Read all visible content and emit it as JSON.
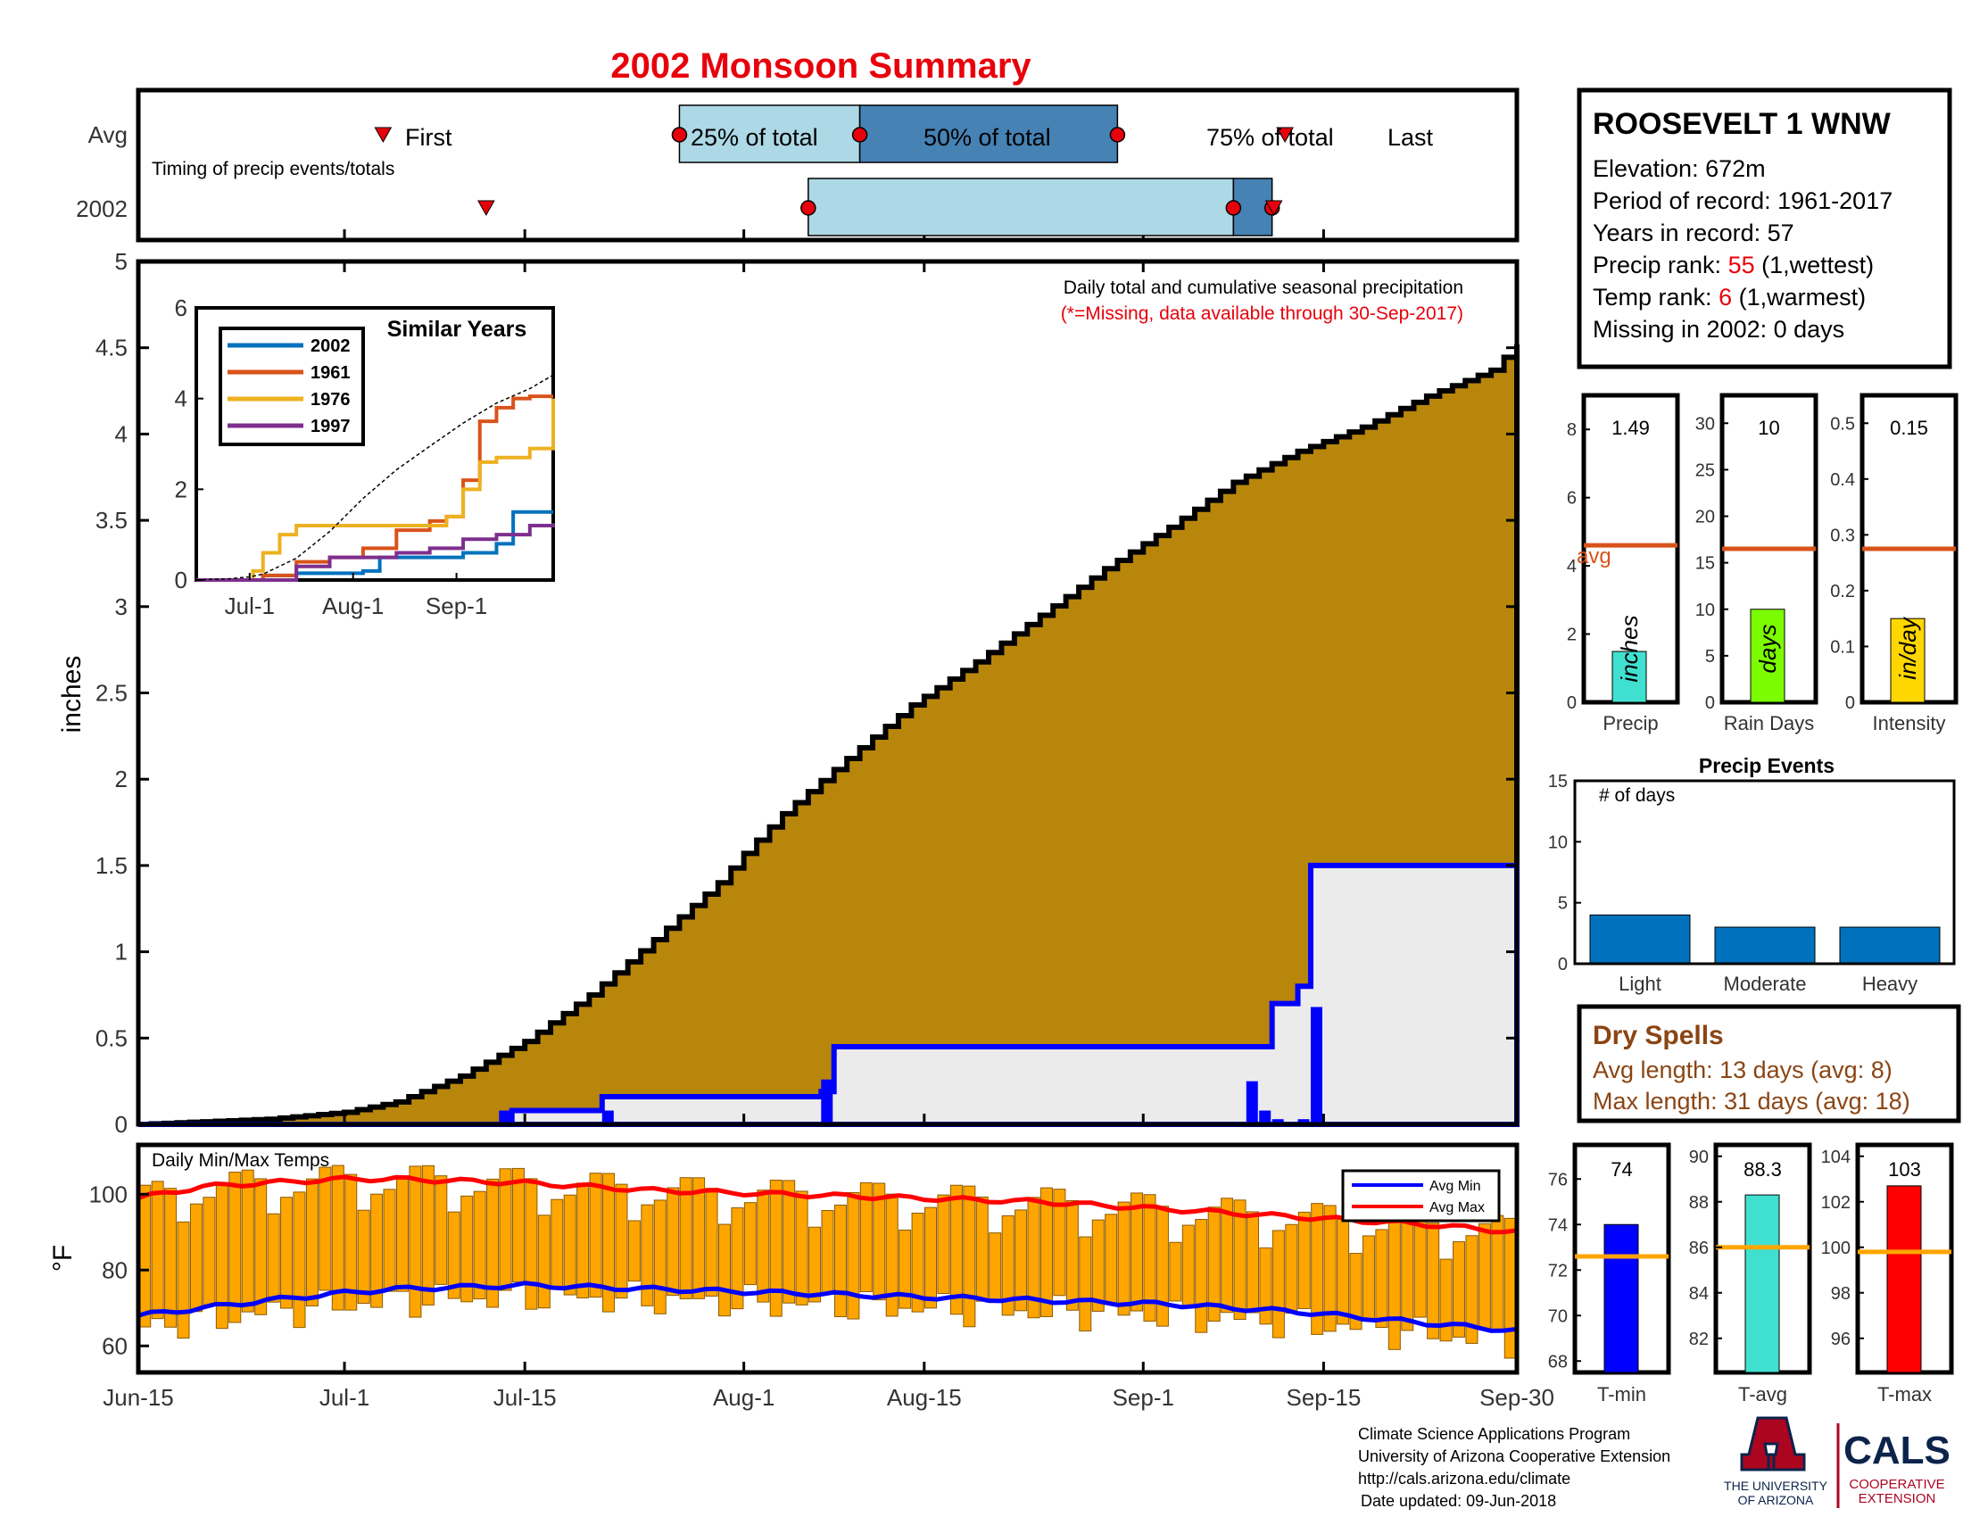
{
  "title": "2002 Monsoon Summary",
  "timing": {
    "avg_label": "Avg",
    "year_label": "2002",
    "subtitle": "Timing of precip events/totals",
    "first_label": "First",
    "p25_label": "25% of total",
    "p50_label": "50% of total",
    "p75_label": "75% of total",
    "last_label": "Last",
    "avg_marks": {
      "first": 19,
      "p25": 42,
      "p50": 56,
      "p75": 76,
      "last": 89
    },
    "year_marks": {
      "first": 27,
      "p25": 52,
      "p50": 85,
      "p75": 85,
      "last": 88
    }
  },
  "station": {
    "name": "ROOSEVELT 1 WNW",
    "elevation_label": "Elevation: 672m",
    "period_label": "Period of record: 1961-2017",
    "years_label": "Years in record: 57",
    "precip_rank_prefix": "Precip rank: ",
    "precip_rank": "55",
    "precip_rank_suffix": " (1,wettest)",
    "temp_rank_prefix": "Temp rank: ",
    "temp_rank": "6",
    "temp_rank_suffix": " (1,warmest)",
    "missing_label": "Missing in 2002: 0 days"
  },
  "main": {
    "note": "Daily total and cumulative seasonal precipitation",
    "missing_note": "(*=Missing, data available through 30-Sep-2017)",
    "ylabel": "inches",
    "temp_title": "Daily Min/Max Temps",
    "temp_ylabel": "°F",
    "legend_min": "Avg Min",
    "legend_max": "Avg Max",
    "yticks": [
      "0",
      "0.5",
      "1",
      "1.5",
      "2",
      "2.5",
      "3",
      "3.5",
      "4",
      "4.5",
      "5"
    ],
    "temp_yticks": [
      "60",
      "80",
      "100"
    ],
    "xticks": [
      {
        "day": 0,
        "label": "Jun-15"
      },
      {
        "day": 16,
        "label": "Jul-1"
      },
      {
        "day": 30,
        "label": "Jul-15"
      },
      {
        "day": 47,
        "label": "Aug-1"
      },
      {
        "day": 61,
        "label": "Aug-15"
      },
      {
        "day": 78,
        "label": "Sep-1"
      },
      {
        "day": 92,
        "label": "Sep-15"
      },
      {
        "day": 107,
        "label": "Sep-30"
      }
    ]
  },
  "similar": {
    "title": "Similar Years",
    "yticks": [
      "0",
      "2",
      "4",
      "6"
    ],
    "xticks": [
      "Jul-1",
      "Aug-1",
      "Sep-1"
    ],
    "legend": [
      {
        "label": "2002",
        "color": "#0072BD"
      },
      {
        "label": "1961",
        "color": "#D95319"
      },
      {
        "label": "1976",
        "color": "#EDB120"
      },
      {
        "label": "1997",
        "color": "#7E2F8E"
      }
    ]
  },
  "summary_bars": [
    {
      "label": "Precip",
      "value": 1.49,
      "value_label": "1.49",
      "avg": 4.6,
      "avg_label": "avg",
      "unit": "inches",
      "color": "#40E0D0",
      "ymax": 9,
      "yticks": [
        "0",
        "2",
        "4",
        "6",
        "8"
      ]
    },
    {
      "label": "Rain Days",
      "value": 10,
      "value_label": "10",
      "avg": 16.5,
      "unit": "days",
      "color": "#7CFC00",
      "ymax": 33,
      "yticks": [
        "0",
        "5",
        "10",
        "15",
        "20",
        "25",
        "30"
      ]
    },
    {
      "label": "Intensity",
      "value": 0.15,
      "value_label": "0.15",
      "avg": 0.275,
      "unit": "in/day",
      "color": "#FFD700",
      "ymax": 0.55,
      "yticks": [
        "0",
        "0.1",
        "0.2",
        "0.3",
        "0.4",
        "0.5"
      ]
    }
  ],
  "events": {
    "title": "Precip Events",
    "ylabel": "# of days",
    "yticks": [
      "0",
      "5",
      "10",
      "15"
    ],
    "categories": [
      "Light",
      "Moderate",
      "Heavy"
    ],
    "values": [
      4,
      3,
      3
    ],
    "color": "#0072BD"
  },
  "dry_spells": {
    "title": "Dry Spells",
    "avg_label": "Avg length: 13 days (avg: 8)",
    "max_label": "Max length: 31 days (avg: 18)"
  },
  "temp_bars": [
    {
      "label": "T-min",
      "value": 74,
      "value_label": "74",
      "avg": 72.6,
      "color": "#0000FF",
      "ymin": 67.5,
      "ymax": 77.5,
      "yticks": [
        "68",
        "70",
        "72",
        "74",
        "76"
      ]
    },
    {
      "label": "T-avg",
      "value": 88.3,
      "value_label": "88.3",
      "avg": 86,
      "color": "#40E0D0",
      "ymin": 80.5,
      "ymax": 90.5,
      "yticks": [
        "82",
        "84",
        "86",
        "88",
        "90"
      ]
    },
    {
      "label": "T-max",
      "value": 102.7,
      "value_label": "103",
      "avg": 99.8,
      "color": "#FF0000",
      "ymin": 94.5,
      "ymax": 104.5,
      "yticks": [
        "96",
        "98",
        "100",
        "102",
        "104"
      ]
    }
  ],
  "footer": {
    "line1": "Climate Science Applications Program",
    "line2": "University of Arizona Cooperative Extension",
    "line3": "http://cals.arizona.edu/climate",
    "line4": "Date updated: 09-Jun-2018",
    "ua_line1": "THE UNIVERSITY",
    "ua_line2": "OF ARIZONA",
    "cals": "CALS",
    "cals_line1": "COOPERATIVE",
    "cals_line2": "EXTENSION"
  },
  "chart_data": [
    {
      "type": "area",
      "title": "Daily total and cumulative seasonal precipitation",
      "ylabel": "inches",
      "ylim": [
        0,
        5
      ],
      "xlim": [
        "Jun-15",
        "Sep-30"
      ],
      "series": [
        {
          "role": "average-cumulative",
          "x_day": [
            0,
            10,
            16,
            20,
            25,
            30,
            35,
            40,
            45,
            47,
            50,
            55,
            60,
            65,
            70,
            75,
            80,
            85,
            90,
            95,
            100,
            105,
            107
          ],
          "values": [
            0,
            0.03,
            0.07,
            0.13,
            0.28,
            0.48,
            0.75,
            1.07,
            1.4,
            1.57,
            1.8,
            2.12,
            2.43,
            2.68,
            2.95,
            3.22,
            3.46,
            3.72,
            3.9,
            4.04,
            4.22,
            4.37,
            4.52
          ]
        },
        {
          "name": "2002",
          "role": "2002-cumulative",
          "x_day": [
            0,
            28,
            29,
            36,
            53,
            54,
            86,
            88,
            90,
            91,
            107
          ],
          "values": [
            0,
            0,
            0.08,
            0.16,
            0.19,
            0.45,
            0.45,
            0.7,
            0.8,
            1.5,
            1.5
          ]
        },
        {
          "name": "2002",
          "role": "2002-daily",
          "x_day": [
            28,
            36,
            53,
            86,
            87,
            88,
            90,
            91
          ],
          "values": [
            0.08,
            0.08,
            0.26,
            0.25,
            0.08,
            0.03,
            0.03,
            0.68
          ]
        }
      ]
    },
    {
      "type": "bar",
      "title": "Daily Min/Max Temps",
      "ylabel": "°F",
      "ylim": [
        53,
        113
      ],
      "avg_min": {
        "x_day": [
          0,
          5,
          10,
          16,
          20,
          30,
          40,
          50,
          60,
          70,
          80,
          90,
          100,
          107
        ],
        "values": [
          68,
          70,
          72,
          74,
          75,
          76,
          75,
          74,
          73,
          72,
          71,
          69,
          66,
          64
        ]
      },
      "avg_max": {
        "x_day": [
          0,
          5,
          10,
          16,
          20,
          30,
          40,
          50,
          60,
          70,
          80,
          90,
          100,
          107
        ],
        "values": [
          99,
          102,
          103,
          104,
          104,
          103,
          101,
          100,
          99,
          98,
          96,
          94,
          92,
          90
        ]
      }
    },
    {
      "type": "line",
      "title": "Similar Years",
      "ylim": [
        0,
        6
      ],
      "series": [
        {
          "name": "2002",
          "x_day": [
            0,
            10,
            20,
            30,
            40,
            50,
            55,
            70,
            80,
            90,
            95,
            100,
            107
          ],
          "values": [
            0,
            0,
            0.1,
            0.15,
            0.15,
            0.2,
            0.5,
            0.5,
            0.6,
            0.8,
            1.5,
            1.5,
            1.5
          ]
        },
        {
          "name": "1961",
          "x_day": [
            0,
            10,
            20,
            30,
            40,
            50,
            60,
            70,
            75,
            80,
            85,
            90,
            95,
            100,
            107
          ],
          "values": [
            0,
            0,
            0.1,
            0.4,
            0.5,
            0.7,
            1.1,
            1.3,
            1.4,
            2.2,
            3.5,
            3.8,
            4.0,
            4.05,
            4.05
          ]
        },
        {
          "name": "1976",
          "x_day": [
            0,
            10,
            17,
            20,
            25,
            30,
            40,
            50,
            60,
            70,
            75,
            80,
            85,
            90,
            95,
            100,
            107
          ],
          "values": [
            0,
            0,
            0.2,
            0.6,
            1.0,
            1.2,
            1.2,
            1.2,
            1.2,
            1.2,
            1.4,
            2.0,
            2.6,
            2.7,
            2.7,
            2.9,
            4.0
          ]
        },
        {
          "name": "1997",
          "x_day": [
            0,
            10,
            20,
            30,
            40,
            50,
            60,
            70,
            80,
            90,
            95,
            100,
            107
          ],
          "values": [
            0,
            0,
            0,
            0.3,
            0.5,
            0.5,
            0.6,
            0.7,
            0.9,
            1.0,
            1.0,
            1.2,
            1.25
          ]
        },
        {
          "name": "avg",
          "x_day": [
            0,
            10,
            16,
            20,
            30,
            40,
            50,
            60,
            70,
            80,
            90,
            100,
            107
          ],
          "values": [
            0,
            0.03,
            0.07,
            0.13,
            0.48,
            1.07,
            1.8,
            2.43,
            2.95,
            3.46,
            3.9,
            4.22,
            4.52
          ]
        }
      ]
    }
  ]
}
